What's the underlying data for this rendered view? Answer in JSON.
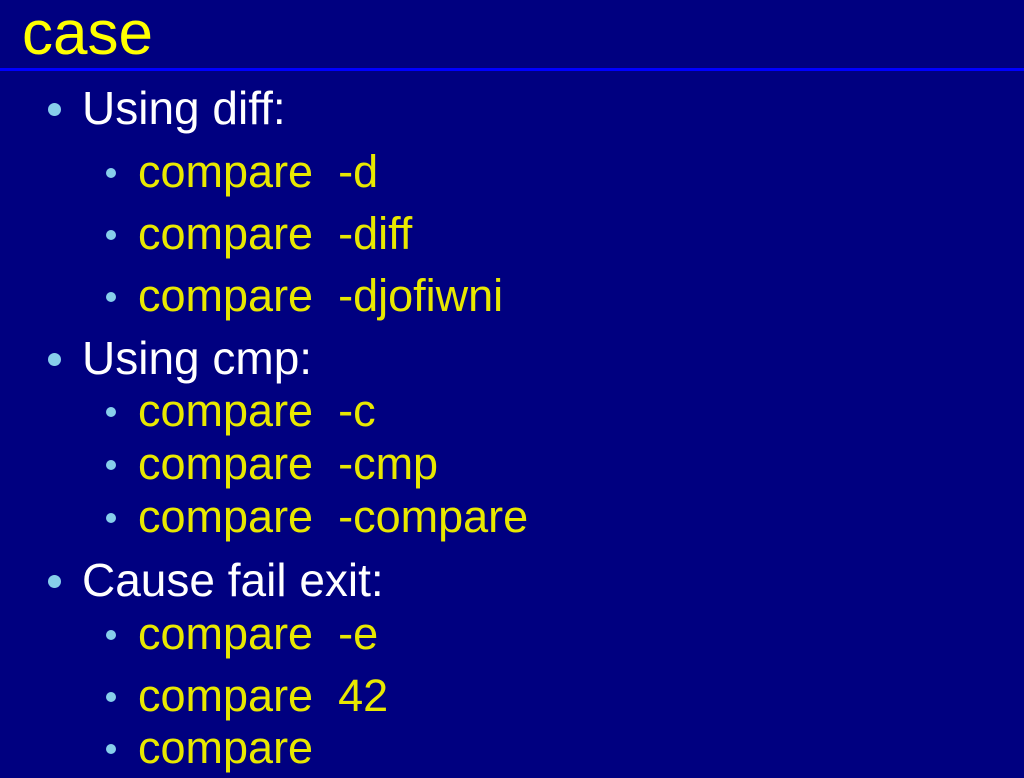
{
  "slide": {
    "title": "case",
    "sections": [
      {
        "label": "Using diff:",
        "items": [
          "compare  -d",
          "compare  -diff",
          "compare  -djofiwni"
        ]
      },
      {
        "label": "Using cmp:",
        "items": [
          "compare  -c",
          "compare  -cmp",
          "compare  -compare"
        ]
      },
      {
        "label": "Cause fail exit:",
        "items": [
          "compare  -e",
          "compare  42",
          "compare"
        ]
      }
    ]
  },
  "colors": {
    "background": "#000080",
    "title": "#ffff00",
    "rule": "#0000ff",
    "bullet": "#87ceeb",
    "item": "#e8e800",
    "heading": "#ffffff"
  }
}
